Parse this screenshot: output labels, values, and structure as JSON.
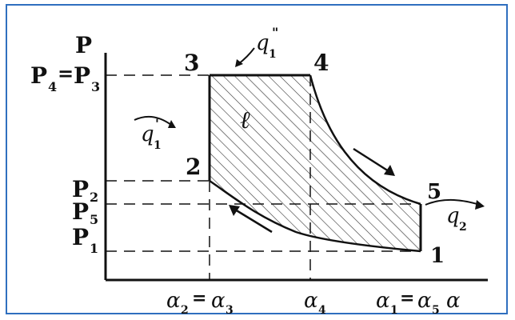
{
  "diagram": {
    "axis_y_label": "P",
    "y_ticks": {
      "p4_p3": {
        "main": "P",
        "sub1": "4",
        "eq": "=",
        "main2": "P",
        "sub2": "3"
      },
      "p2": {
        "main": "P",
        "sub": "2"
      },
      "p5": {
        "main": "P",
        "sub": "5"
      },
      "p1": {
        "main": "P",
        "sub": "1"
      }
    },
    "x_ticks": {
      "a2_a3": {
        "main": "α",
        "sub1": "2",
        "eq": "=",
        "main2": "α",
        "sub2": "3"
      },
      "a4": {
        "main": "α",
        "sub": "4"
      },
      "a1_a5": {
        "main": "α",
        "sub1": "1",
        "eq": "=",
        "main2": "α",
        "sub2": "5"
      },
      "axis_x_label": "α"
    },
    "points": {
      "p1": "1",
      "p2": "2",
      "p3": "3",
      "p4": "4",
      "p5": "5"
    },
    "heat": {
      "q1_top": {
        "main": "q",
        "sub": "1",
        "sup": "\""
      },
      "q1_left": {
        "main": "q",
        "sub": "1",
        "sup": "'"
      },
      "q2": {
        "main": "q",
        "sub": "2"
      }
    },
    "work_label": "ℓ",
    "colors": {
      "frame_border": "#2f6fbf",
      "line": "#111111"
    }
  }
}
